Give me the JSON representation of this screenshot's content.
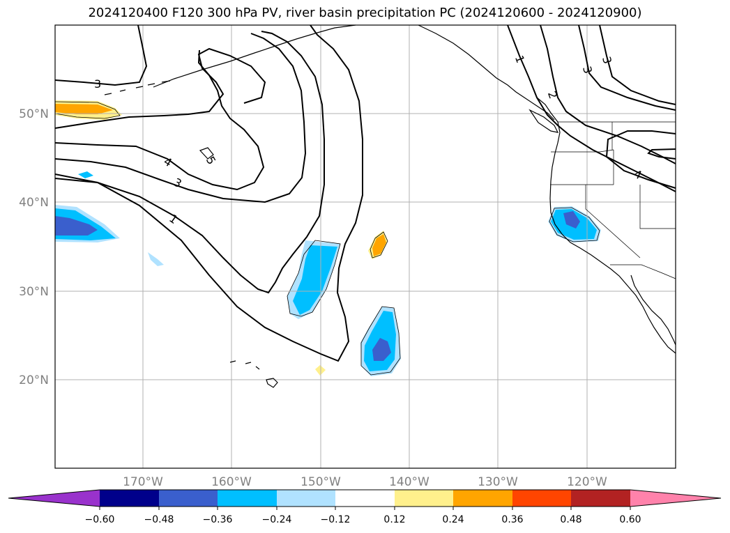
{
  "title": "2024120400 F120 300 hPa PV, river basin precipitation PC (2024120600 - 2024120900)",
  "map": {
    "lon_ticks": [
      "170°W",
      "160°W",
      "150°W",
      "140°W",
      "130°W",
      "120°W"
    ],
    "lat_ticks": [
      "50°N",
      "40°N",
      "30°N",
      "20°N"
    ],
    "contour_labels": [
      "3",
      "4",
      "3",
      "1",
      "5",
      "1",
      "2",
      "3",
      "3",
      "4"
    ],
    "contour_color": "#000000",
    "grid": true
  },
  "colorbar": {
    "ticks": [
      "−0.60",
      "−0.48",
      "−0.36",
      "−0.24",
      "−0.12",
      "0.12",
      "0.24",
      "0.36",
      "0.48",
      "0.60"
    ],
    "colors": [
      "#9932cc",
      "#00008b",
      "#3a5fcd",
      "#00bfff",
      "#b0e2ff",
      "#ffffff",
      "#fff08c",
      "#ffa500",
      "#ff4500",
      "#b22222",
      "#ff82ab"
    ]
  }
}
